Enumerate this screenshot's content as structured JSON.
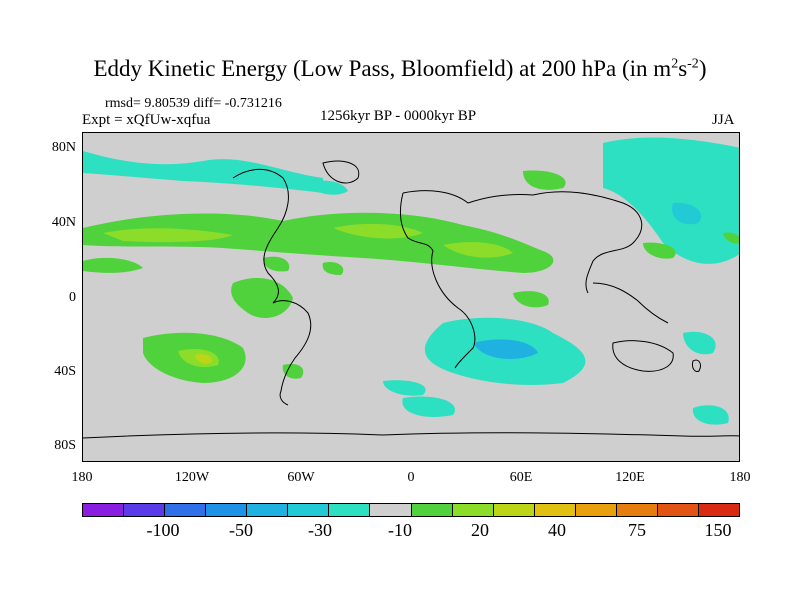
{
  "title": {
    "main": "Eddy Kinetic Energy (Low Pass, Bloomfield) at 200 hPa (in m",
    "sup1": "2",
    "mid": "s",
    "sup2": "-2",
    "end": ")"
  },
  "stats": "rmsd= 9.80539 diff= -0.731216",
  "expt": "Expt = xQfUw-xqfua",
  "period": "1256kyr BP - 0000kyr BP",
  "season": "JJA",
  "axes": {
    "y_labels": [
      "80N",
      "40N",
      "0",
      "40S",
      "80S"
    ],
    "x_labels": [
      "180",
      "120W",
      "60W",
      "0",
      "60E",
      "120E",
      "180"
    ]
  },
  "colorbar": {
    "colors": [
      "#8a1ee0",
      "#5a3be8",
      "#2f6fe8",
      "#1e92e6",
      "#1fb2e0",
      "#22cad6",
      "#2ee0c2",
      "#cfcfcf",
      "#4fd23c",
      "#8cdc2a",
      "#bcd617",
      "#e0c010",
      "#e8a00c",
      "#e67d10",
      "#e25414",
      "#d92a12"
    ],
    "labels": [
      "-100",
      "-50",
      "-30",
      "-10",
      "20",
      "40",
      "75",
      "150"
    ]
  },
  "legend_colors": {
    "land_bg": "#cfcfcf",
    "cyan": "#2ee0c2",
    "teal": "#22cad6",
    "blue": "#1fb2e0",
    "green": "#4fd23c",
    "yellowgreen": "#8cdc2a",
    "yellow": "#bcd617",
    "orange": "#e0c010"
  }
}
